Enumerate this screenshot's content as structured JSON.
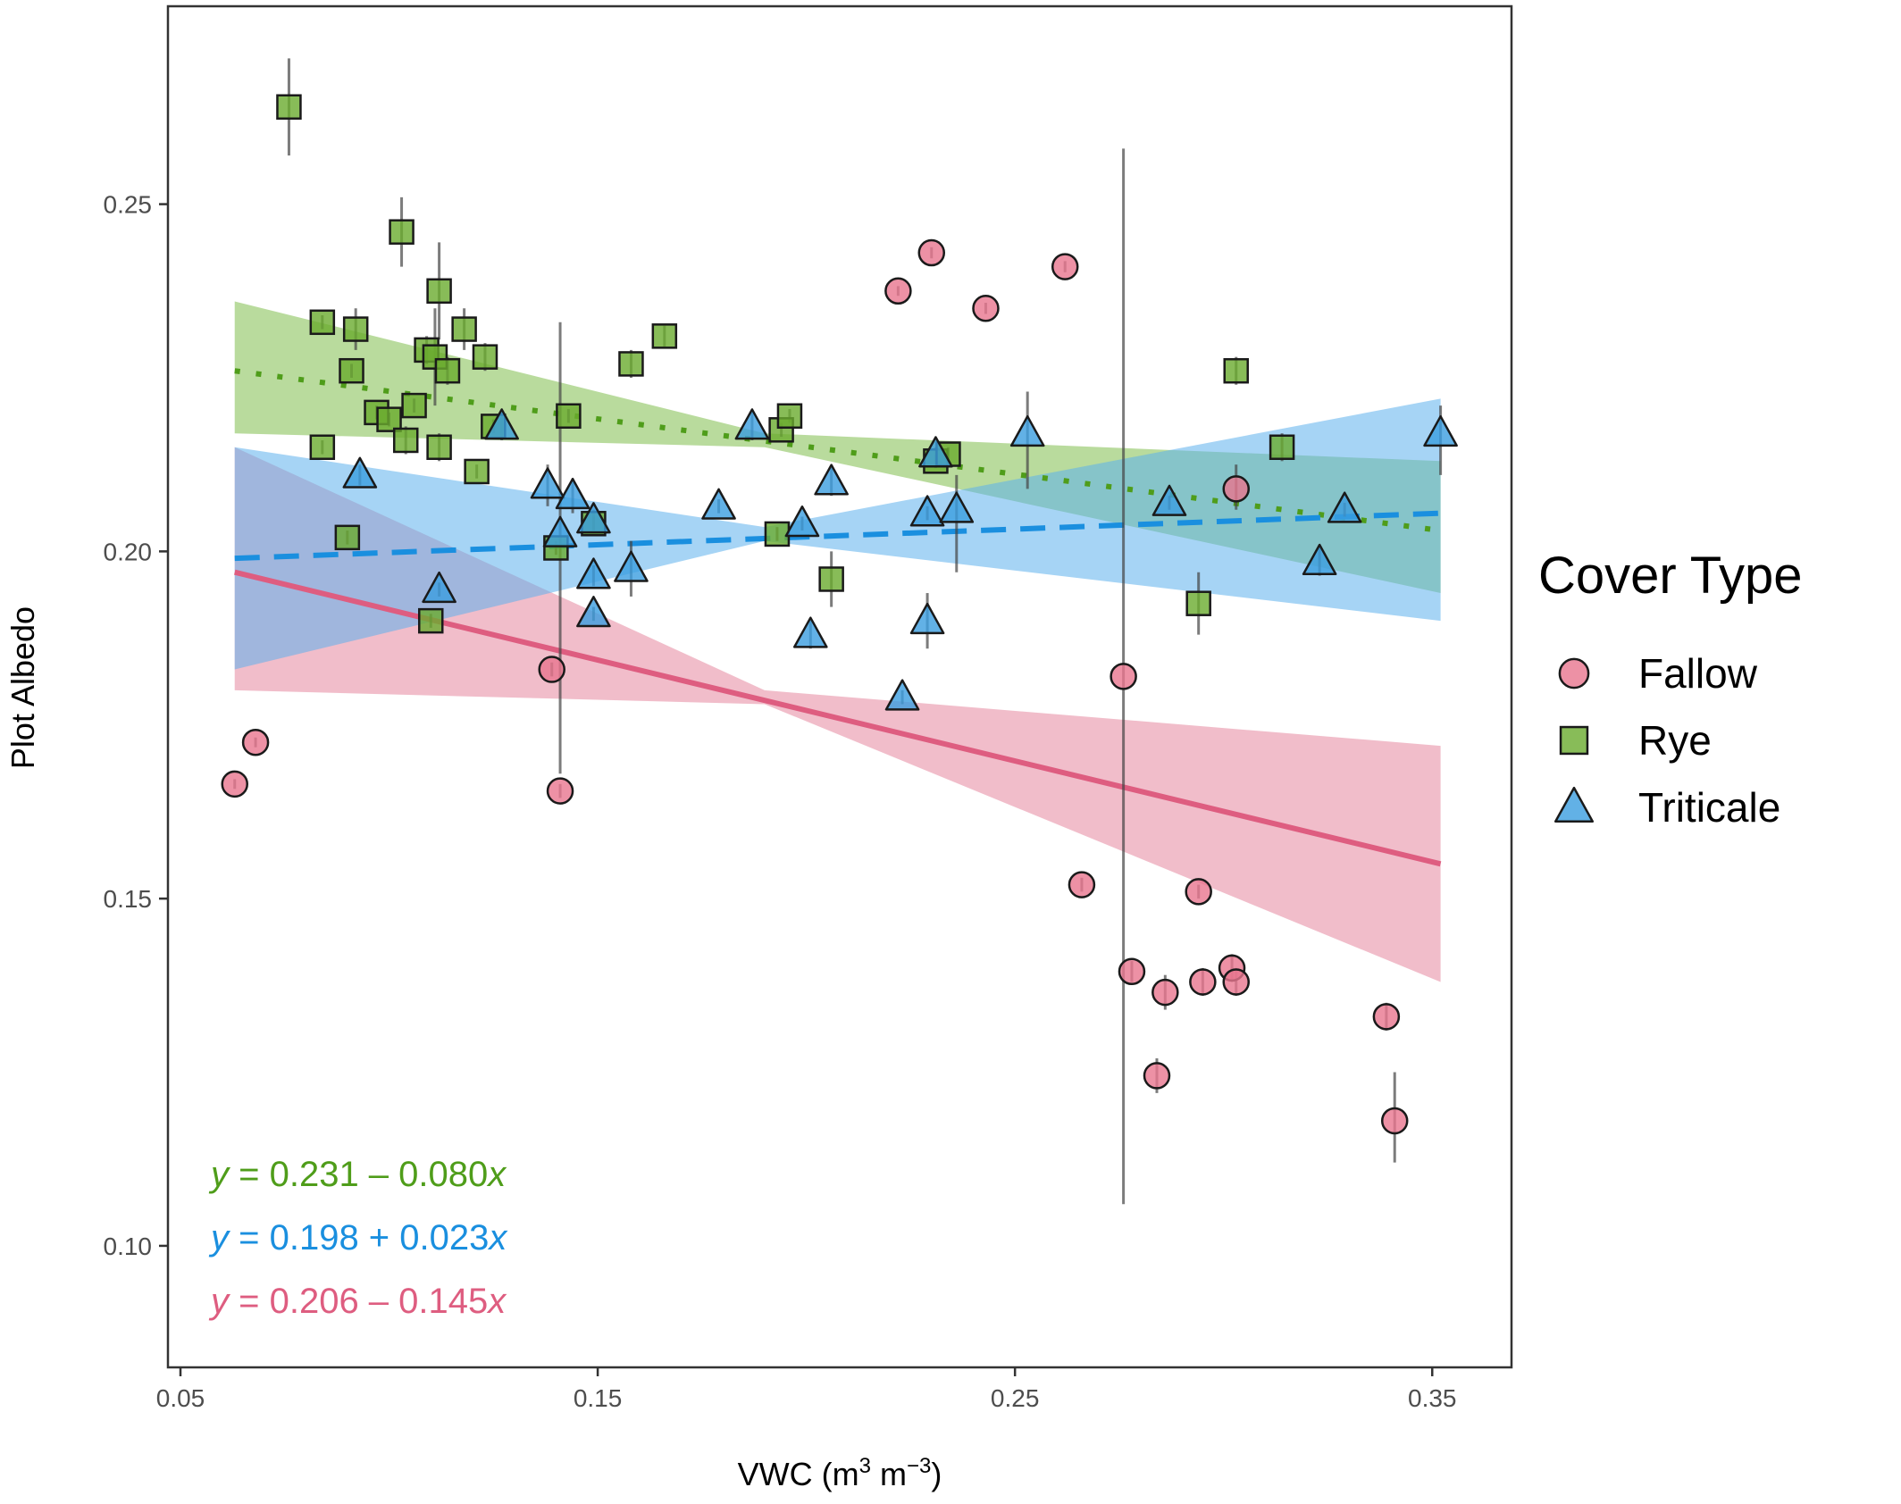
{
  "chart_data": {
    "type": "scatter",
    "xlabel": {
      "main": "VWC (m",
      "sup1": "3",
      "mid": " m",
      "sup2": "−3",
      "end": ")"
    },
    "ylabel": "Plot Albedo",
    "xlim": [
      0.047,
      0.369
    ],
    "ylim": [
      0.0825,
      0.2785
    ],
    "x_ticks": [
      0.05,
      0.15,
      0.25,
      0.35
    ],
    "x_tick_labels": [
      "0.05",
      "0.15",
      "0.25",
      "0.35"
    ],
    "y_ticks": [
      0.1,
      0.15,
      0.2,
      0.25
    ],
    "y_tick_labels": [
      "0.10",
      "0.15",
      "0.20",
      "0.25"
    ],
    "grid": false,
    "legend": {
      "title": "Cover Type",
      "placement": "right"
    },
    "series": [
      {
        "name": "Fallow",
        "marker": "circle",
        "color": "#e8768f",
        "line_color": "#de5d80",
        "band_color": "#e6869e",
        "line_style": "solid",
        "fit": {
          "x0": 0.063,
          "y0": 0.197,
          "x1": 0.352,
          "y1": 0.155
        },
        "band": [
          [
            0.063,
            0.18,
            0.215
          ],
          [
            0.19,
            0.178,
            0.18
          ],
          [
            0.352,
            0.138,
            0.172
          ]
        ],
        "equation": "y = 0.206 – 0.145x",
        "points": [
          [
            0.063,
            0.1665,
            0.1658,
            0.1672
          ],
          [
            0.068,
            0.1725,
            0.1718,
            0.1732
          ],
          [
            0.139,
            0.183,
            0.182,
            0.184
          ],
          [
            0.141,
            0.1655,
            0.1645,
            0.1665
          ],
          [
            0.222,
            0.2375,
            0.2368,
            0.2382
          ],
          [
            0.23,
            0.243,
            0.2422,
            0.2438
          ],
          [
            0.243,
            0.235,
            0.2342,
            0.2358
          ],
          [
            0.262,
            0.241,
            0.2402,
            0.2418
          ],
          [
            0.266,
            0.152,
            0.151,
            0.153
          ],
          [
            0.276,
            0.182,
            0.106,
            0.258
          ],
          [
            0.278,
            0.1395,
            0.138,
            0.141
          ],
          [
            0.284,
            0.1245,
            0.122,
            0.127
          ],
          [
            0.286,
            0.1365,
            0.134,
            0.139
          ],
          [
            0.294,
            0.151,
            0.15,
            0.152
          ],
          [
            0.295,
            0.138,
            0.136,
            0.14
          ],
          [
            0.302,
            0.14,
            0.138,
            0.142
          ],
          [
            0.303,
            0.209,
            0.206,
            0.2125
          ],
          [
            0.303,
            0.138,
            0.136,
            0.14
          ],
          [
            0.339,
            0.133,
            0.131,
            0.135
          ],
          [
            0.341,
            0.118,
            0.112,
            0.125
          ]
        ]
      },
      {
        "name": "Rye",
        "marker": "square",
        "color": "#6aab2e",
        "line_color": "#4f9d1a",
        "band_color": "#7fbe4c",
        "line_style": "dotted",
        "fit": {
          "x0": 0.063,
          "y0": 0.226,
          "x1": 0.352,
          "y1": 0.203
        },
        "band": [
          [
            0.063,
            0.217,
            0.236
          ],
          [
            0.19,
            0.215,
            0.217
          ],
          [
            0.352,
            0.194,
            0.213
          ]
        ],
        "equation": "y = 0.231 – 0.080x",
        "points": [
          [
            0.076,
            0.264,
            0.257,
            0.271
          ],
          [
            0.084,
            0.233,
            0.232,
            0.234
          ],
          [
            0.084,
            0.215,
            0.214,
            0.216
          ],
          [
            0.09,
            0.202,
            0.201,
            0.203
          ],
          [
            0.091,
            0.226,
            0.225,
            0.227
          ],
          [
            0.092,
            0.232,
            0.229,
            0.235
          ],
          [
            0.097,
            0.22,
            0.219,
            0.221
          ],
          [
            0.1,
            0.219,
            0.218,
            0.22
          ],
          [
            0.103,
            0.246,
            0.241,
            0.251
          ],
          [
            0.104,
            0.216,
            0.214,
            0.218
          ],
          [
            0.106,
            0.221,
            0.22,
            0.222
          ],
          [
            0.109,
            0.229,
            0.227,
            0.231
          ],
          [
            0.11,
            0.19,
            0.189,
            0.191
          ],
          [
            0.111,
            0.228,
            0.221,
            0.235
          ],
          [
            0.112,
            0.2375,
            0.2305,
            0.2445
          ],
          [
            0.112,
            0.215,
            0.213,
            0.217
          ],
          [
            0.114,
            0.226,
            0.224,
            0.228
          ],
          [
            0.118,
            0.232,
            0.229,
            0.235
          ],
          [
            0.121,
            0.2115,
            0.2105,
            0.2125
          ],
          [
            0.123,
            0.228,
            0.226,
            0.23
          ],
          [
            0.125,
            0.218,
            0.217,
            0.219
          ],
          [
            0.14,
            0.2005,
            0.1995,
            0.2015
          ],
          [
            0.143,
            0.2195,
            0.2185,
            0.2205
          ],
          [
            0.149,
            0.204,
            0.203,
            0.205
          ],
          [
            0.158,
            0.227,
            0.225,
            0.229
          ],
          [
            0.166,
            0.231,
            0.2295,
            0.2325
          ],
          [
            0.193,
            0.2025,
            0.2015,
            0.2035
          ],
          [
            0.194,
            0.2175,
            0.2165,
            0.2185
          ],
          [
            0.196,
            0.2195,
            0.2185,
            0.2205
          ],
          [
            0.206,
            0.196,
            0.192,
            0.2
          ],
          [
            0.231,
            0.213,
            0.212,
            0.214
          ],
          [
            0.234,
            0.214,
            0.213,
            0.215
          ],
          [
            0.294,
            0.1925,
            0.188,
            0.197
          ],
          [
            0.303,
            0.226,
            0.224,
            0.228
          ],
          [
            0.314,
            0.215,
            0.213,
            0.217
          ]
        ]
      },
      {
        "name": "Triticale",
        "marker": "triangle",
        "color": "#3b9ee0",
        "line_color": "#1a8fdf",
        "band_color": "#5db1ec",
        "line_style": "dashed",
        "fit": {
          "x0": 0.063,
          "y0": 0.199,
          "x1": 0.352,
          "y1": 0.2055
        },
        "band": [
          [
            0.063,
            0.183,
            0.215
          ],
          [
            0.19,
            0.2015,
            0.2035
          ],
          [
            0.352,
            0.19,
            0.222
          ]
        ],
        "equation": "y = 0.198 + 0.023x",
        "points": [
          [
            0.093,
            0.211,
            0.2095,
            0.2125
          ],
          [
            0.112,
            0.1945,
            0.1935,
            0.1955
          ],
          [
            0.127,
            0.218,
            0.216,
            0.22
          ],
          [
            0.138,
            0.2095,
            0.2065,
            0.2125
          ],
          [
            0.141,
            0.2025,
            0.168,
            0.233
          ],
          [
            0.144,
            0.208,
            0.2055,
            0.2105
          ],
          [
            0.149,
            0.2045,
            0.203,
            0.206
          ],
          [
            0.149,
            0.1965,
            0.195,
            0.198
          ],
          [
            0.149,
            0.191,
            0.19,
            0.192
          ],
          [
            0.158,
            0.1975,
            0.1935,
            0.2015
          ],
          [
            0.179,
            0.2065,
            0.2055,
            0.2075
          ],
          [
            0.187,
            0.218,
            0.216,
            0.22
          ],
          [
            0.199,
            0.204,
            0.203,
            0.205
          ],
          [
            0.201,
            0.188,
            0.186,
            0.19
          ],
          [
            0.206,
            0.21,
            0.208,
            0.212
          ],
          [
            0.223,
            0.179,
            0.178,
            0.18
          ],
          [
            0.229,
            0.2055,
            0.2045,
            0.2065
          ],
          [
            0.229,
            0.19,
            0.186,
            0.194
          ],
          [
            0.231,
            0.214,
            0.213,
            0.215
          ],
          [
            0.236,
            0.206,
            0.197,
            0.211
          ],
          [
            0.253,
            0.217,
            0.209,
            0.223
          ],
          [
            0.287,
            0.207,
            0.206,
            0.208
          ],
          [
            0.323,
            0.1985,
            0.1965,
            0.2005
          ],
          [
            0.329,
            0.206,
            0.205,
            0.207
          ],
          [
            0.352,
            0.217,
            0.211,
            0.221
          ]
        ]
      }
    ],
    "point_format": "[x, y, error_low, error_high]"
  }
}
